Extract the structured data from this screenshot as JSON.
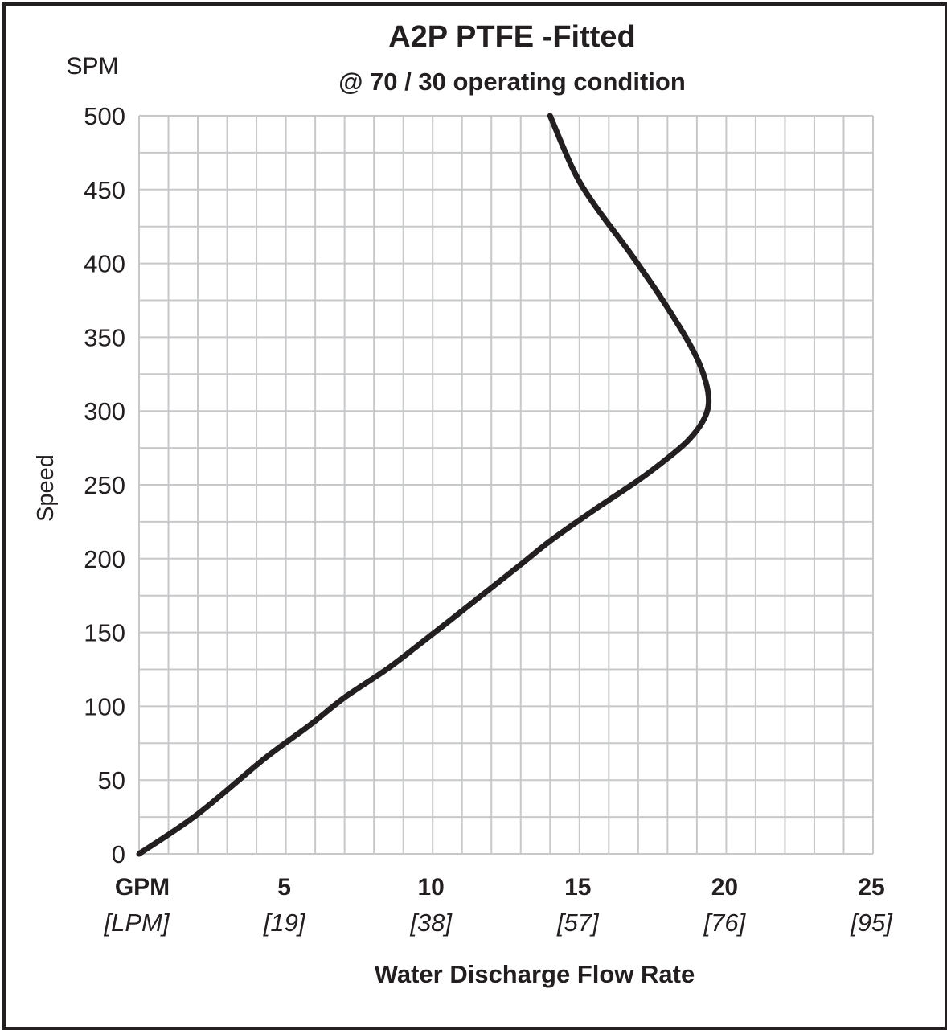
{
  "chart_data": {
    "type": "line",
    "title": "A2P PTFE -Fitted",
    "subtitle": "@ 70 / 30 operating condition",
    "y_unit": "SPM",
    "ylabel": "Speed",
    "xlabel": "Water Discharge Flow Rate",
    "x_unit_primary": "GPM",
    "x_unit_secondary": "[LPM]",
    "xlim": [
      0,
      25
    ],
    "ylim": [
      0,
      500
    ],
    "grid": true,
    "x_major_ticks": [
      {
        "value": 5,
        "label": "5",
        "sublabel": "[19]"
      },
      {
        "value": 10,
        "label": "10",
        "sublabel": "[38]"
      },
      {
        "value": 15,
        "label": "15",
        "sublabel": "[57]"
      },
      {
        "value": 20,
        "label": "20",
        "sublabel": "[76]"
      },
      {
        "value": 25,
        "label": "25",
        "sublabel": "[95]"
      }
    ],
    "y_ticks": [
      {
        "value": 0,
        "label": "0"
      },
      {
        "value": 50,
        "label": "50"
      },
      {
        "value": 100,
        "label": "100"
      },
      {
        "value": 150,
        "label": "150"
      },
      {
        "value": 200,
        "label": "200"
      },
      {
        "value": 250,
        "label": "250"
      },
      {
        "value": 300,
        "label": "300"
      },
      {
        "value": 350,
        "label": "350"
      },
      {
        "value": 400,
        "label": "400"
      },
      {
        "value": 450,
        "label": "450"
      },
      {
        "value": 500,
        "label": "500"
      }
    ],
    "series": [
      {
        "color": "#231f20",
        "points": [
          [
            0,
            0
          ],
          [
            2,
            27
          ],
          [
            4.3,
            65
          ],
          [
            5.8,
            87
          ],
          [
            7,
            106
          ],
          [
            8.5,
            126
          ],
          [
            10,
            149
          ],
          [
            11.6,
            174
          ],
          [
            13,
            196
          ],
          [
            14,
            212
          ],
          [
            15.5,
            233
          ],
          [
            17,
            253
          ],
          [
            18,
            268
          ],
          [
            18.7,
            280
          ],
          [
            19.2,
            293
          ],
          [
            19.4,
            305
          ],
          [
            19.3,
            320
          ],
          [
            18.9,
            340
          ],
          [
            18,
            370
          ],
          [
            16.8,
            405
          ],
          [
            15.5,
            440
          ],
          [
            14.8,
            463
          ],
          [
            14,
            500
          ]
        ]
      }
    ]
  }
}
